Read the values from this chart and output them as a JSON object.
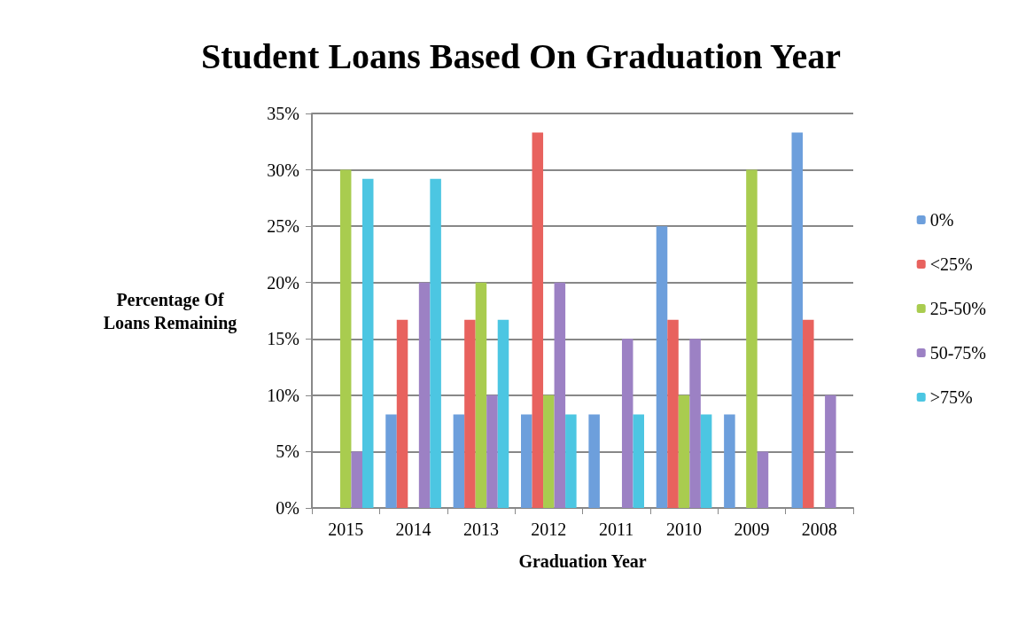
{
  "chart_data": {
    "type": "bar",
    "title": "Student Loans Based On Graduation Year",
    "xlabel": "Graduation Year",
    "ylabel": "Percentage Of\nLoans Remaining",
    "categories": [
      "2015",
      "2014",
      "2013",
      "2012",
      "2011",
      "2010",
      "2009",
      "2008"
    ],
    "series": [
      {
        "name": "0%",
        "color": "#6d9fdc",
        "values": [
          0,
          8.3,
          8.3,
          8.3,
          8.3,
          25,
          8.3,
          33.3
        ]
      },
      {
        "name": "<25%",
        "color": "#e8625e",
        "values": [
          0,
          16.7,
          16.7,
          33.3,
          0,
          16.7,
          0,
          16.7
        ]
      },
      {
        "name": "25-50%",
        "color": "#a9cc4f",
        "values": [
          30,
          0,
          20,
          10,
          0,
          10,
          30,
          0
        ]
      },
      {
        "name": "50-75%",
        "color": "#9c81c4",
        "values": [
          5,
          20,
          10,
          20,
          15,
          15,
          5,
          10
        ]
      },
      {
        "name": ">75%",
        "color": "#4cc6e2",
        "values": [
          29.2,
          29.2,
          16.7,
          8.3,
          8.3,
          8.3,
          0,
          0
        ]
      }
    ],
    "ylim": [
      0,
      35
    ],
    "yticks": [
      {
        "value": 0,
        "label": "0%"
      },
      {
        "value": 5,
        "label": "5%"
      },
      {
        "value": 10,
        "label": "10%"
      },
      {
        "value": 15,
        "label": "15%"
      },
      {
        "value": 20,
        "label": "20%"
      },
      {
        "value": 25,
        "label": "25%"
      },
      {
        "value": 30,
        "label": "30%"
      },
      {
        "value": 35,
        "label": "35%"
      }
    ],
    "grid": "y",
    "legend": "right"
  }
}
